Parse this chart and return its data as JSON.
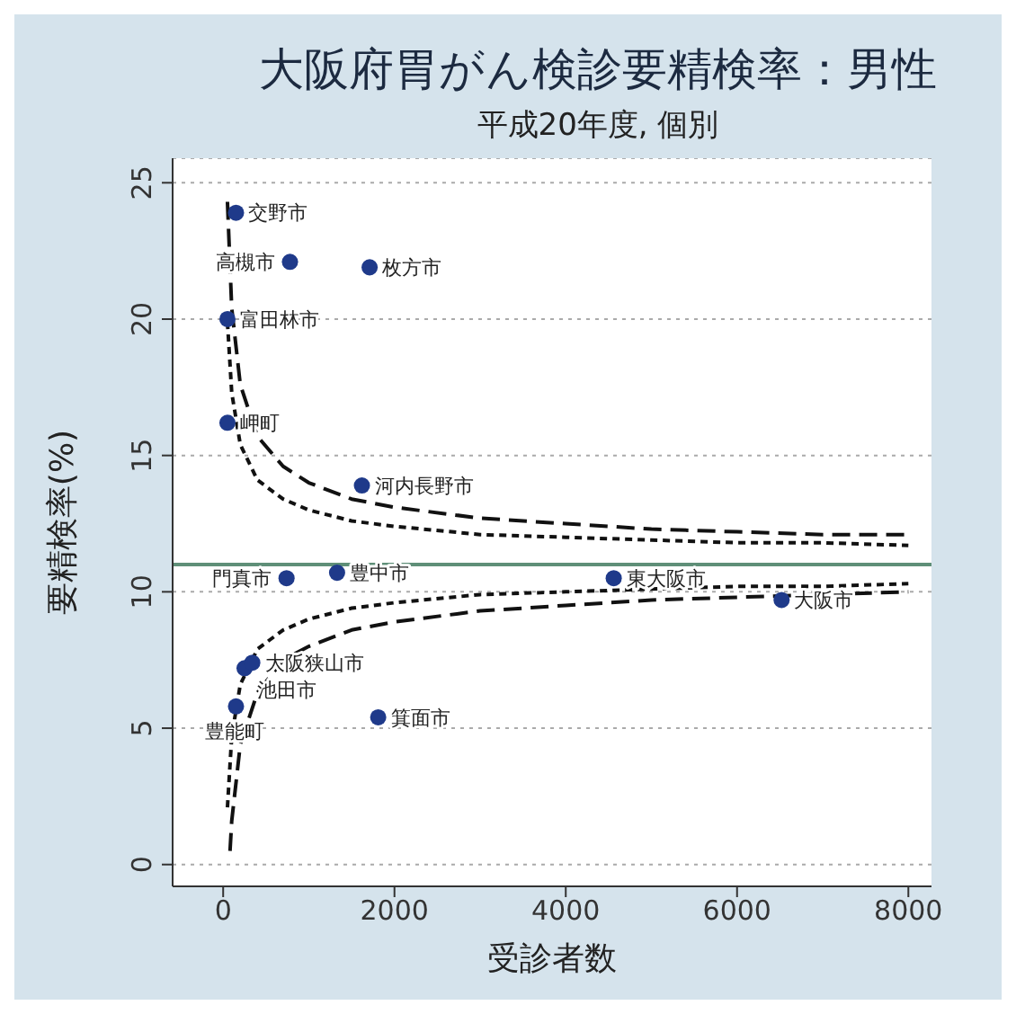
{
  "chart_data": {
    "type": "scatter",
    "title": "大阪府胃がん検診要精検率：男性",
    "subtitle": "平成20年度, 個別",
    "xlabel": "受診者数",
    "ylabel": "要精検率(%)",
    "xlim": [
      -590,
      8270
    ],
    "xticks": [
      0,
      2000,
      4000,
      6000,
      8000
    ],
    "ylim": [
      -0.8,
      25.9
    ],
    "yticks": [
      0,
      5,
      10,
      15,
      20,
      25
    ],
    "grid": "y",
    "legend": false,
    "marker": "circle",
    "ref_lines": [
      {
        "axis": "y",
        "value": 11.0,
        "color": "#5f8f78",
        "line_style": "solid"
      }
    ],
    "series": [
      {
        "color": "#1f3a8a",
        "x": [
          150,
          780,
          1710,
          50,
          50,
          1620,
          740,
          1330,
          4560,
          6520,
          250,
          340,
          150,
          1810
        ],
        "values": [
          23.9,
          22.1,
          21.9,
          20.0,
          16.2,
          13.9,
          10.5,
          10.7,
          10.5,
          9.7,
          7.2,
          7.4,
          5.8,
          5.4
        ],
        "value_labels": [
          "交野市",
          "高槻市",
          "枚方市",
          "富田林市",
          "岬町",
          "河内長野市",
          "門真市",
          "豊中市",
          "東大阪市",
          "大阪市",
          "池田市",
          "大阪狭山市",
          "豊能町",
          "箕面市"
        ]
      },
      {
        "type": "line",
        "color": "#111111",
        "line_style": "dashed",
        "marker": "none",
        "x": [
          50,
          100,
          200,
          400,
          700,
          1000,
          1500,
          2000,
          3000,
          4000,
          5000,
          6000,
          7000,
          8000
        ],
        "values": [
          24.3,
          20.4,
          17.6,
          15.7,
          14.6,
          14.0,
          13.4,
          13.1,
          12.7,
          12.5,
          12.3,
          12.2,
          12.1,
          12.1
        ]
      },
      {
        "type": "line",
        "color": "#111111",
        "line_style": "dotted",
        "marker": "none",
        "x": [
          50,
          100,
          200,
          400,
          700,
          1000,
          1500,
          2000,
          3000,
          4000,
          5000,
          6000,
          7000,
          8000
        ],
        "values": [
          19.9,
          17.3,
          15.4,
          14.1,
          13.4,
          13.0,
          12.6,
          12.4,
          12.1,
          12.0,
          11.9,
          11.8,
          11.8,
          11.7
        ]
      },
      {
        "type": "line",
        "color": "#111111",
        "line_style": "dotted",
        "marker": "none",
        "x": [
          50,
          100,
          200,
          400,
          700,
          1000,
          1500,
          2000,
          3000,
          4000,
          5000,
          6000,
          7000,
          8000
        ],
        "values": [
          2.1,
          4.7,
          6.6,
          7.9,
          8.6,
          9.0,
          9.4,
          9.6,
          9.9,
          10.0,
          10.1,
          10.2,
          10.2,
          10.3
        ]
      },
      {
        "type": "line",
        "color": "#111111",
        "line_style": "dashed",
        "marker": "none",
        "x": [
          80,
          100,
          200,
          400,
          700,
          1000,
          1500,
          2000,
          3000,
          4000,
          5000,
          6000,
          7000,
          8000
        ],
        "values": [
          0.5,
          1.6,
          4.4,
          6.3,
          7.5,
          8.0,
          8.6,
          8.9,
          9.3,
          9.5,
          9.7,
          9.8,
          9.9,
          10.0
        ]
      }
    ]
  }
}
